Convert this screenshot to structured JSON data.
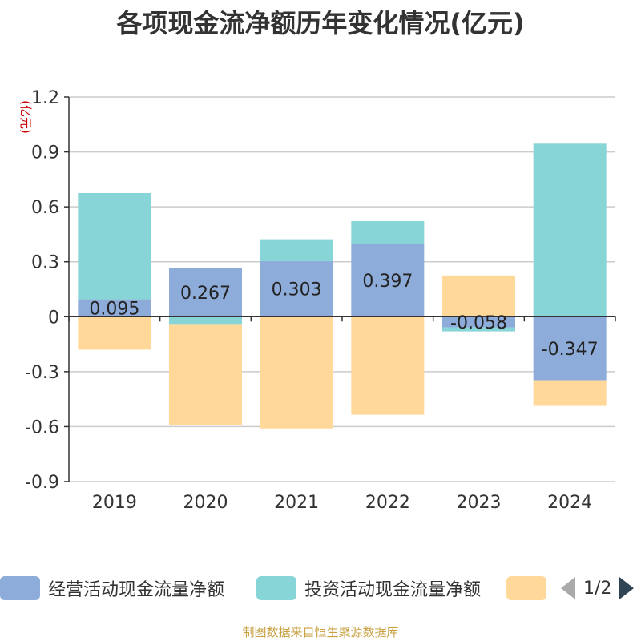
{
  "source_text": "制图数据来自恒生聚源数据库",
  "legend_pager": "1/2",
  "chart_data": {
    "type": "bar",
    "stacked": true,
    "title": "各项现金流净额历年变化情况(亿元)",
    "ylabel": "(亿元)",
    "categories": [
      "2019",
      "2020",
      "2021",
      "2022",
      "2023",
      "2024"
    ],
    "ylim": [
      -0.9,
      1.2
    ],
    "yticks": [
      1.2,
      0.9,
      0.6,
      0.3,
      0,
      -0.3,
      -0.6,
      -0.9
    ],
    "ytick_labels": [
      "1.2",
      "0.9",
      "0.6",
      "0.3",
      "0",
      "-0.3",
      "-0.6",
      "-0.9"
    ],
    "grid": true,
    "legend_position": "bottom",
    "series": [
      {
        "name": "经营活动现金流量净额",
        "color": "#8eacd9",
        "values": [
          0.095,
          0.267,
          0.303,
          0.397,
          -0.058,
          -0.347
        ],
        "labels": [
          "0.095",
          "0.267",
          "0.303",
          "0.397",
          "-0.058",
          "-0.347"
        ]
      },
      {
        "name": "投资活动现金流量净额",
        "color": "#88d5d8",
        "values": [
          0.58,
          -0.04,
          0.12,
          0.125,
          -0.022,
          0.945
        ]
      },
      {
        "name": "",
        "color": "#ffd89a",
        "values": [
          -0.18,
          -0.55,
          -0.61,
          -0.535,
          0.225,
          -0.14
        ]
      }
    ]
  }
}
